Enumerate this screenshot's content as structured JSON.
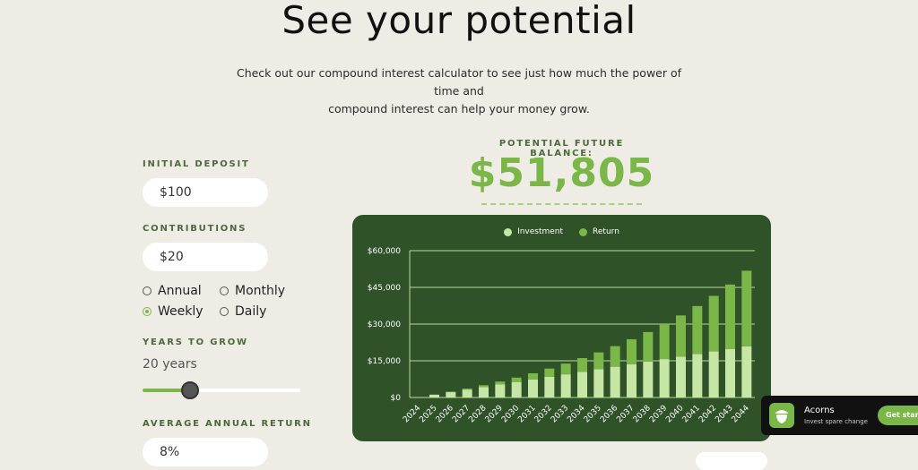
{
  "header": {
    "title": "See your potential",
    "subtitle_line1": "Check out our compound interest calculator to see just how much the power of time and",
    "subtitle_line2": "compound interest can help your money grow."
  },
  "calculator": {
    "initial_deposit_label": "INITIAL DEPOSIT",
    "initial_deposit_value": "$100",
    "contributions_label": "CONTRIBUTIONS",
    "contributions_value": "$20",
    "frequency_options": [
      {
        "label": "Annual",
        "selected": false
      },
      {
        "label": "Monthly",
        "selected": false
      },
      {
        "label": "Weekly",
        "selected": true
      },
      {
        "label": "Daily",
        "selected": false
      }
    ],
    "years_label": "YEARS TO GROW",
    "years_value": "20 years",
    "years_slider_fraction": 0.3,
    "return_label": "AVERAGE ANNUAL RETURN",
    "return_value": "8%"
  },
  "balance": {
    "label": "POTENTIAL FUTURE BALANCE:",
    "value": "$51,805"
  },
  "colors": {
    "accent": "#7ab648",
    "investment": "#c6e6a6",
    "return": "#7ab648",
    "chart_bg": "#2f5229"
  },
  "chart_data": {
    "type": "bar",
    "stacked": true,
    "legend": [
      "Investment",
      "Return"
    ],
    "legend_position": "top-center",
    "categories": [
      "2024",
      "2025",
      "2026",
      "2027",
      "2028",
      "2029",
      "2030",
      "2031",
      "2032",
      "2033",
      "2034",
      "2035",
      "2036",
      "2037",
      "2038",
      "2039",
      "2040",
      "2041",
      "2042",
      "2043",
      "2044"
    ],
    "series": [
      {
        "name": "Investment",
        "values": [
          100,
          1140,
          2180,
          3220,
          4260,
          5300,
          6340,
          7380,
          8420,
          9460,
          10500,
          11540,
          12580,
          13620,
          14660,
          15700,
          16740,
          17780,
          18820,
          19860,
          20900
        ]
      },
      {
        "name": "Return",
        "values": [
          0,
          50,
          190,
          420,
          760,
          1220,
          1800,
          2500,
          3400,
          4400,
          5600,
          6900,
          8400,
          10200,
          12100,
          14300,
          16800,
          19600,
          22700,
          26300,
          30900
        ]
      }
    ],
    "yticks": [
      "$0",
      "$15,000",
      "$30,000",
      "$45,000",
      "$60,000"
    ],
    "ylim": [
      0,
      60000
    ],
    "grid": true
  },
  "promo": {
    "title": "Acorns",
    "subtitle": "Invest spare change",
    "button": "Get started"
  }
}
